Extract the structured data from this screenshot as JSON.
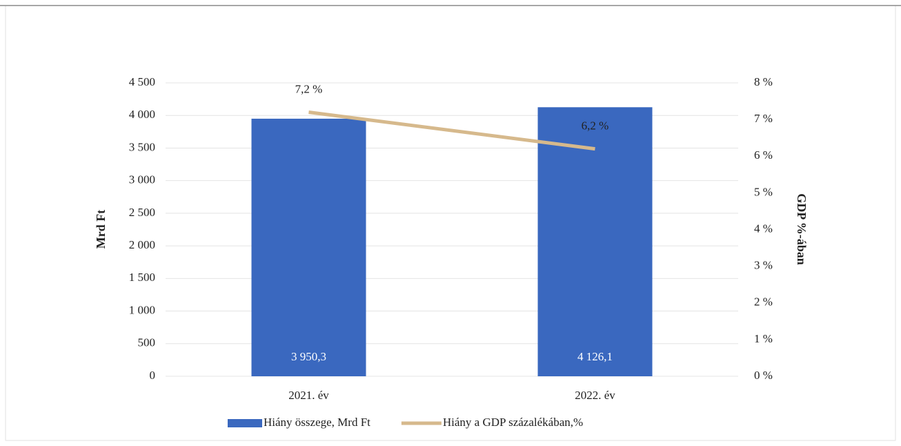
{
  "chart_data": {
    "type": "bar",
    "categories": [
      "2021. év",
      "2022. év"
    ],
    "series": [
      {
        "name": "Hiány összege, Mrd Ft",
        "color": "#3a68bf",
        "values": [
          3950.3,
          4126.1
        ],
        "value_labels": [
          "3 950,3",
          "4 126,1"
        ]
      },
      {
        "name": "Hiány a GDP százalékában,%",
        "type": "line",
        "axis": "y2",
        "color": "#d6b98c",
        "values": [
          7.2,
          6.2
        ],
        "value_labels": [
          "7,2 %",
          "6,2 %"
        ]
      }
    ],
    "ylabel": "Mrd Ft",
    "y2label": "GDP %-ában",
    "ylim": [
      0,
      4500
    ],
    "yticks": [
      0,
      500,
      {
        "value": 1000,
        "label": "1 000"
      },
      {
        "value": 1500,
        "label": "1 500"
      },
      {
        "value": 2000,
        "label": "2 000"
      },
      {
        "value": 2500,
        "label": "2 500"
      },
      {
        "value": 3000,
        "label": "3 000"
      },
      {
        "value": 3500,
        "label": "3 500"
      },
      {
        "value": 4000,
        "label": "4 000"
      },
      {
        "value": 4500,
        "label": "4 500"
      }
    ],
    "y2lim": [
      0,
      8
    ],
    "y2ticks": [
      {
        "value": 0,
        "label": "0 %"
      },
      {
        "value": 1,
        "label": "1 %"
      },
      {
        "value": 2,
        "label": "2 %"
      },
      {
        "value": 3,
        "label": "3 %"
      },
      {
        "value": 4,
        "label": "4 %"
      },
      {
        "value": 5,
        "label": "5 %"
      },
      {
        "value": 6,
        "label": "6 %"
      },
      {
        "value": 7,
        "label": "7 %"
      },
      {
        "value": 8,
        "label": "8 %"
      }
    ],
    "grid": true,
    "legend": "bottom"
  }
}
